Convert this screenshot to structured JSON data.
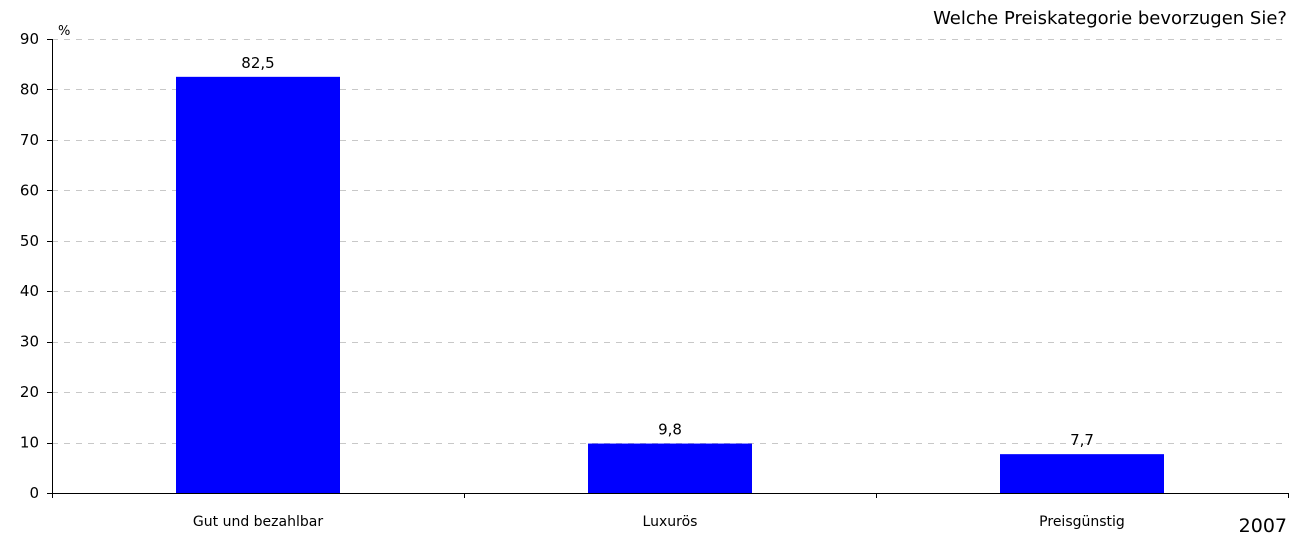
{
  "chart_data": {
    "type": "bar",
    "title": "Welche Preiskategorie bevorzugen Sie?",
    "ylabel": "%",
    "xlabel": "",
    "categories": [
      "Gut und bezahlbar",
      "Luxurös",
      "Preisgünstig"
    ],
    "values": [
      82.5,
      9.8,
      7.7
    ],
    "value_labels": [
      "82,5",
      "9,8",
      "7,7"
    ],
    "ylim": [
      0,
      90
    ],
    "yticks": [
      0,
      10,
      20,
      30,
      40,
      50,
      60,
      70,
      80,
      90
    ],
    "grid": true,
    "year_label": "2007",
    "colors": {
      "bar": "#0000ff",
      "grid": "#c8c8c8",
      "axis": "#000000"
    }
  }
}
